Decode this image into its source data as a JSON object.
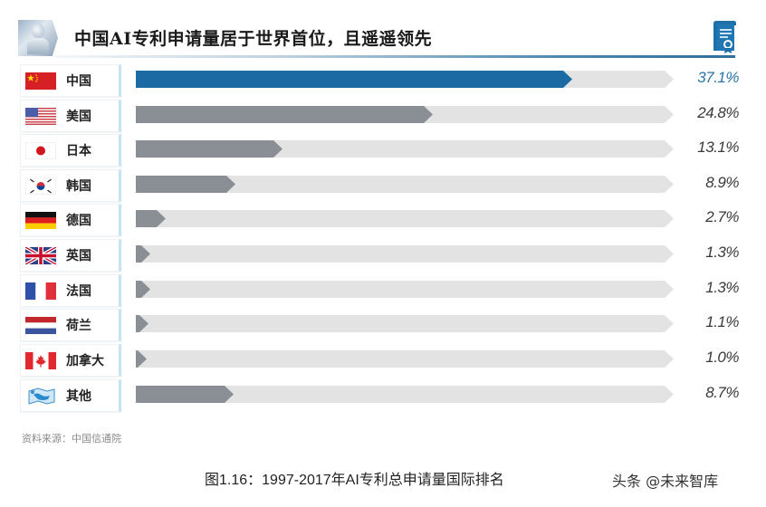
{
  "header": {
    "title": "中国AI专利申请量居于世界首位，且遥遥领先",
    "left_image": "robot-illustration",
    "right_icon": "certificate-icon"
  },
  "colors": {
    "leader_bar": "#1b6aa3",
    "other_bar": "#8a8f96",
    "track": "#e3e3e3",
    "leader_text": "#2a74a8",
    "label_border": "#c6e2f3"
  },
  "rows": [
    {
      "country": "中国",
      "flag": "china-flag-icon",
      "value": 37.1,
      "label": "37.1%"
    },
    {
      "country": "美国",
      "flag": "usa-flag-icon",
      "value": 24.8,
      "label": "24.8%"
    },
    {
      "country": "日本",
      "flag": "japan-flag-icon",
      "value": 13.1,
      "label": "13.1%"
    },
    {
      "country": "韩国",
      "flag": "korea-flag-icon",
      "value": 8.9,
      "label": "8.9%"
    },
    {
      "country": "德国",
      "flag": "germany-flag-icon",
      "value": 2.7,
      "label": "2.7%"
    },
    {
      "country": "英国",
      "flag": "uk-flag-icon",
      "value": 1.3,
      "label": "1.3%"
    },
    {
      "country": "法国",
      "flag": "france-flag-icon",
      "value": 1.3,
      "label": "1.3%"
    },
    {
      "country": "荷兰",
      "flag": "netherlands-flag-icon",
      "value": 1.1,
      "label": "1.1%"
    },
    {
      "country": "加拿大",
      "flag": "canada-flag-icon",
      "value": 1.0,
      "label": "1.0%"
    },
    {
      "country": "其他",
      "flag": "world-map-icon",
      "value": 8.7,
      "label": "8.7%"
    }
  ],
  "source": "资料来源：中国信通院",
  "caption": "图1.16：1997-2017年AI专利总申请量国际排名",
  "watermark": "头条 @未来智库",
  "chart_data": {
    "type": "bar",
    "orientation": "horizontal",
    "title": "中国AI专利申请量居于世界首位，且遥遥领先",
    "caption": "图1.16：1997-2017年AI专利总申请量国际排名",
    "categories": [
      "中国",
      "美国",
      "日本",
      "韩国",
      "德国",
      "英国",
      "法国",
      "荷兰",
      "加拿大",
      "其他"
    ],
    "values": [
      37.1,
      24.8,
      13.1,
      8.9,
      2.7,
      1.3,
      1.3,
      1.1,
      1.0,
      8.7
    ],
    "unit": "%",
    "xlabel": "",
    "ylabel": "",
    "xlim": [
      0,
      60
    ],
    "grid": false,
    "legend": "none",
    "highlight": "中国",
    "source": "资料来源：中国信通院"
  }
}
